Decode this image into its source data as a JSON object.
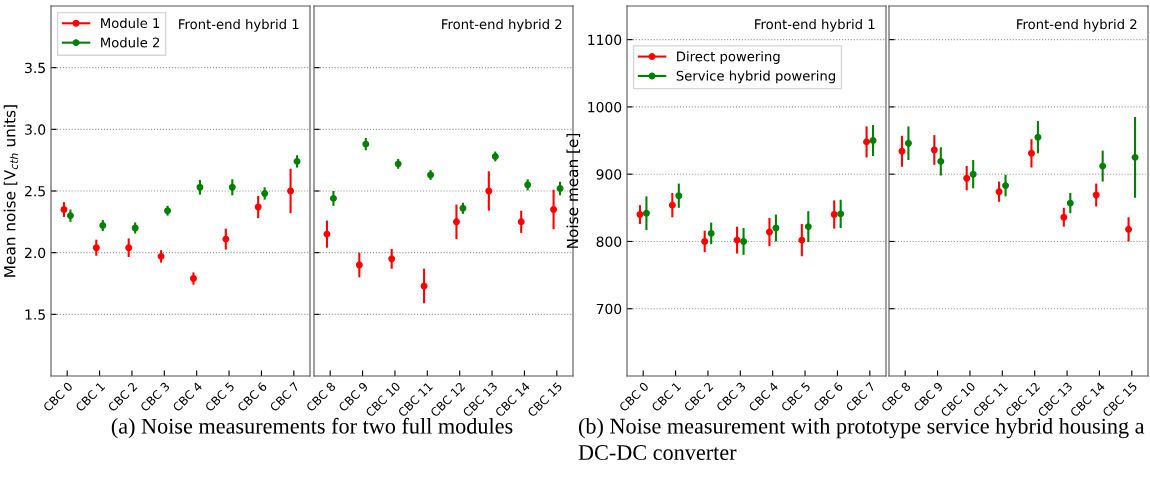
{
  "chart_data": [
    {
      "type": "scatter",
      "ylabel": "Mean noise [V$_{cth}$ units]",
      "categories": [
        "CBC 0",
        "CBC 1",
        "CBC 2",
        "CBC 3",
        "CBC 4",
        "CBC 5",
        "CBC 6",
        "CBC 7"
      ],
      "ylim": [
        1.0,
        4.0
      ],
      "yticks": [
        1.5,
        {
          "value": 2,
          "label": "2.0"
        },
        2.5,
        {
          "value": 3,
          "label": "3.0"
        },
        3.5
      ],
      "grid": "y",
      "legend": "top left",
      "marker": "circle",
      "annotations": [
        "Front-end hybrid 1",
        "(a) Noise measurements for two full modules"
      ],
      "series": [
        {
          "name": "Module 1",
          "color": "#ff0000",
          "values": [
            2.35,
            2.04,
            2.04,
            1.97,
            1.79,
            2.11,
            2.37,
            2.5
          ],
          "errors": [
            0.06,
            0.065,
            0.075,
            0.05,
            0.05,
            0.085,
            0.09,
            0.18
          ]
        },
        {
          "name": "Module 2",
          "color": "#008000",
          "values": [
            2.3,
            2.22,
            2.2,
            2.34,
            2.53,
            2.53,
            2.48,
            2.74
          ],
          "errors": [
            0.05,
            0.045,
            0.045,
            0.04,
            0.06,
            0.065,
            0.05,
            0.05
          ]
        }
      ]
    },
    {
      "type": "scatter",
      "categories": [
        "CBC 8",
        "CBC 9",
        "CBC 10",
        "CBC 11",
        "CBC 12",
        "CBC 13",
        "CBC 14",
        "CBC 15"
      ],
      "ylim": [
        1.0,
        4.0
      ],
      "yticks": [
        1.5,
        2,
        2.5,
        3,
        3.5
      ],
      "grid": "y",
      "marker": "circle",
      "tick_labels": "x",
      "annotations": [
        "Front-end hybrid 2"
      ],
      "series": [
        {
          "color": "#ff0000",
          "values": [
            2.15,
            1.9,
            1.95,
            1.73,
            2.25,
            2.5,
            2.25,
            2.35
          ],
          "errors": [
            0.11,
            0.1,
            0.08,
            0.14,
            0.14,
            0.16,
            0.09,
            0.16
          ]
        },
        {
          "color": "#008000",
          "values": [
            2.44,
            2.88,
            2.72,
            2.63,
            2.36,
            2.78,
            2.55,
            2.52
          ],
          "errors": [
            0.06,
            0.05,
            0.04,
            0.04,
            0.045,
            0.04,
            0.045,
            0.055
          ]
        }
      ]
    },
    {
      "type": "scatter",
      "ylabel": "Noise mean [e]",
      "categories": [
        "CBC 0",
        "CBC 1",
        "CBC 2",
        "CBC 3",
        "CBC 4",
        "CBC 5",
        "CBC 6",
        "CBC 7"
      ],
      "ylim": [
        600,
        1150
      ],
      "yticks": [
        700,
        800,
        900,
        1000,
        1100
      ],
      "grid": "y",
      "legend": "top left",
      "marker": "circle",
      "annotations": [
        "Front-end hybrid 1",
        "(b) Noise measurement with prototype service hybrid housing a DC-DC converter"
      ],
      "series": [
        {
          "name": "Direct powering",
          "color": "#ff0000",
          "values": [
            840,
            854,
            800,
            802,
            814,
            802,
            840,
            948
          ],
          "errors": [
            14,
            18,
            16,
            20,
            21,
            24,
            21,
            23
          ]
        },
        {
          "name": "Service hybrid powering",
          "color": "#008000",
          "values": [
            842,
            868,
            812,
            800,
            820,
            822,
            841,
            950
          ],
          "errors": [
            25,
            18,
            16,
            20,
            20,
            23,
            21,
            23
          ]
        }
      ]
    },
    {
      "type": "scatter",
      "categories": [
        "CBC 8",
        "CBC 9",
        "CBC 10",
        "CBC 11",
        "CBC 12",
        "CBC 13",
        "CBC 14",
        "CBC 15"
      ],
      "ylim": [
        600,
        1150
      ],
      "yticks": [
        700,
        800,
        900,
        1000,
        1100
      ],
      "grid": "y",
      "marker": "circle",
      "tick_labels": "x",
      "annotations": [
        "Front-end hybrid 2"
      ],
      "series": [
        {
          "color": "#ff0000",
          "values": [
            934,
            936,
            894,
            874,
            931,
            836,
            869,
            818
          ],
          "errors": [
            23,
            22,
            18,
            15,
            21,
            14,
            17,
            18
          ]
        },
        {
          "color": "#008000",
          "values": [
            946,
            919,
            900,
            883,
            955,
            857,
            912,
            925
          ],
          "errors": [
            25,
            21,
            21,
            16,
            24,
            15,
            23,
            60
          ]
        }
      ]
    }
  ]
}
